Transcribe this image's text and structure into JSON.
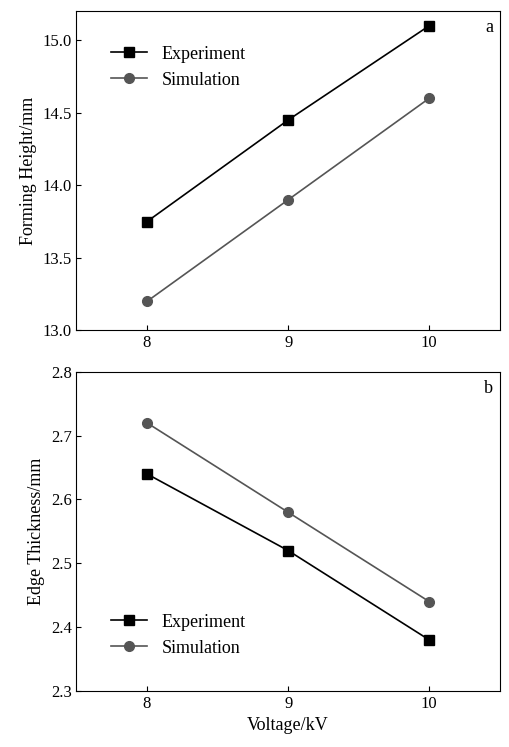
{
  "chart_data": [
    {
      "type": "line",
      "title": "a",
      "ylabel": "Forming Height/mm",
      "x": [
        8,
        9,
        10
      ],
      "series": [
        {
          "name": "Experiment",
          "color": "#000000",
          "marker": "square",
          "values": [
            13.75,
            14.45,
            15.1
          ]
        },
        {
          "name": "Simulation",
          "color": "#555555",
          "marker": "circle",
          "values": [
            13.2,
            13.9,
            14.6
          ]
        }
      ],
      "xlim": [
        7.5,
        10.5
      ],
      "xticks": [
        8,
        9,
        10
      ],
      "ylim": [
        13.0,
        15.2
      ],
      "yticks": [
        {
          "value": 13,
          "label": "13.0"
        },
        13.5,
        {
          "value": 14,
          "label": "14.0"
        },
        14.5,
        {
          "value": 15,
          "label": "15.0"
        }
      ],
      "legend": "upper left"
    },
    {
      "type": "line",
      "title": "b",
      "ylabel": "Edge Thickness/mm",
      "xlabel": "Voltage/kV",
      "x": [
        8,
        9,
        10
      ],
      "series": [
        {
          "name": "Experiment",
          "color": "#000000",
          "marker": "square",
          "values": [
            2.64,
            2.52,
            2.38
          ]
        },
        {
          "name": "Simulation",
          "color": "#555555",
          "marker": "circle",
          "values": [
            2.72,
            2.58,
            2.44
          ]
        }
      ],
      "xlim": [
        7.5,
        10.5
      ],
      "xticks": [
        8,
        9,
        10
      ],
      "ylim": [
        2.3,
        2.8
      ],
      "yticks": [
        2.3,
        2.4,
        2.5,
        2.6,
        2.7,
        2.8
      ],
      "legend": "lower left"
    }
  ]
}
